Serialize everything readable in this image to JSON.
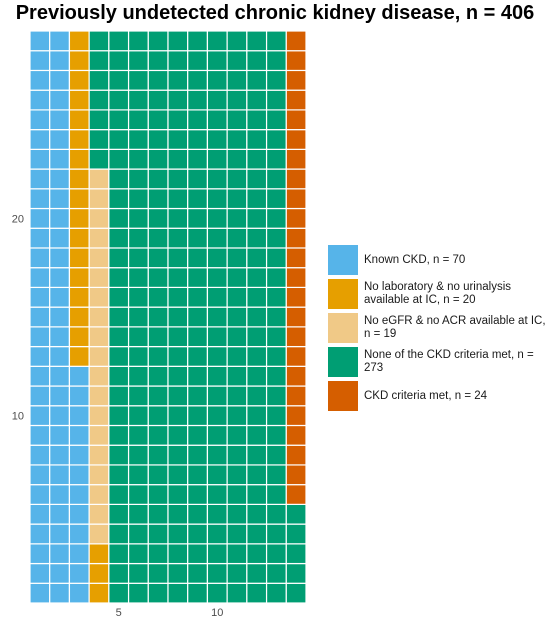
{
  "chart_data": {
    "type": "waffle",
    "title": "Previously undetected chronic kidney disease, n = 406",
    "xlabel": "",
    "ylabel": "",
    "grid": {
      "columns": 14,
      "rows": 29,
      "fill_order": "column-wise from bottom-left"
    },
    "x_ticks": [
      5,
      10
    ],
    "y_ticks": [
      10,
      20
    ],
    "legend_position": "right",
    "categories": [
      {
        "name": "Known CKD, n = 70",
        "count": 70,
        "color": "#56B4E9"
      },
      {
        "name": "No laboratory & no urinalysis available at IC, n = 20",
        "count": 20,
        "color": "#E69F00"
      },
      {
        "name": "No eGFR & no ACR available at IC, n = 19",
        "count": 19,
        "color": "#F0C987"
      },
      {
        "name": "None of the CKD criteria met, n = 273",
        "count": 273,
        "color": "#009E73"
      },
      {
        "name": "CKD criteria met, n = 24",
        "count": 24,
        "color": "#D55E00"
      }
    ]
  }
}
